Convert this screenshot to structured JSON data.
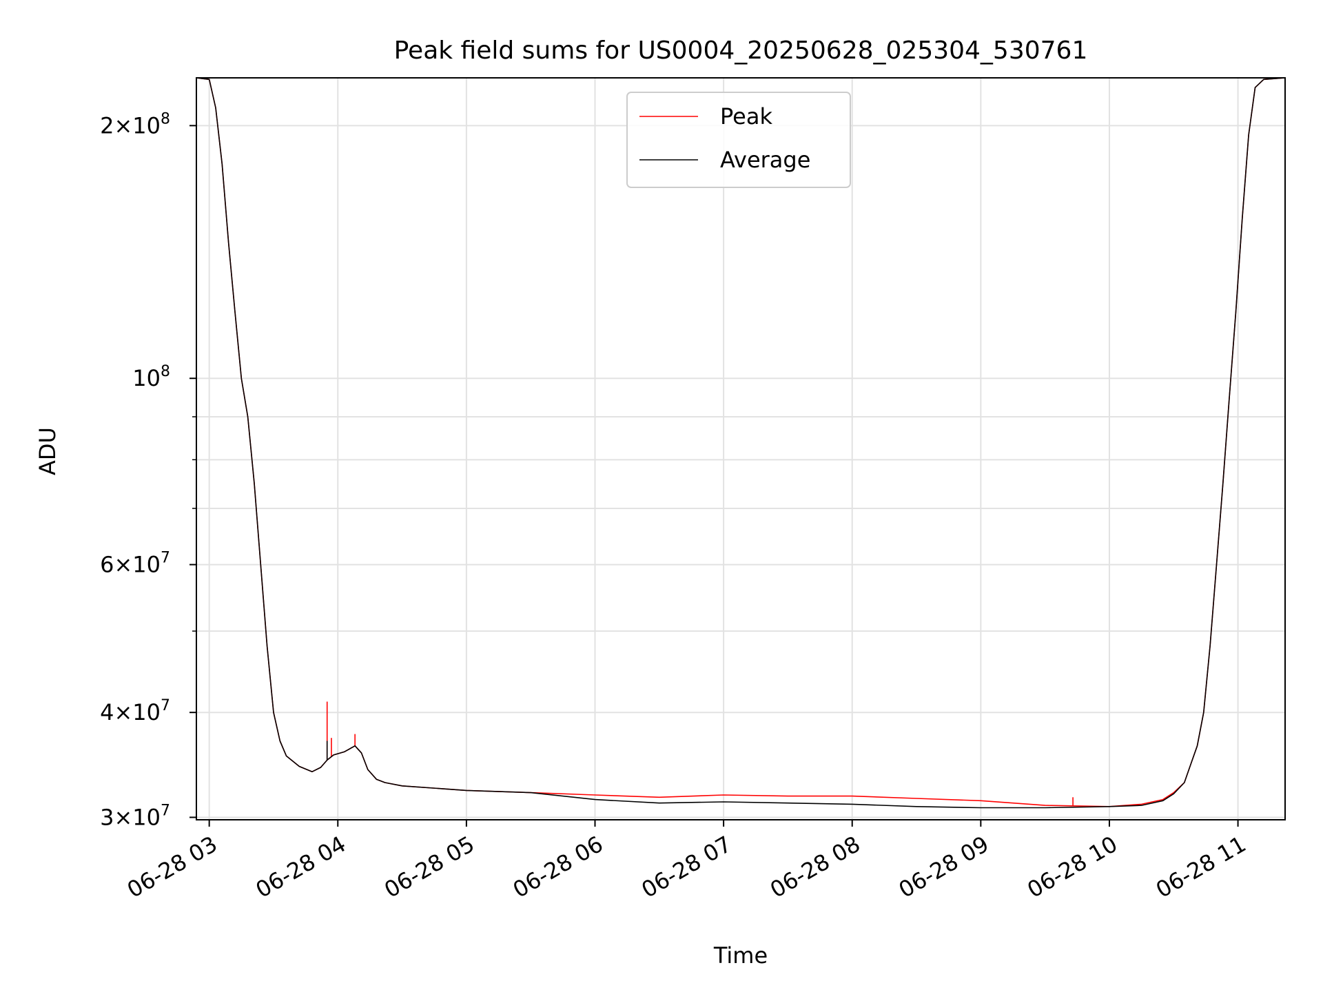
{
  "chart_data": {
    "type": "line",
    "title": "Peak field sums for US0004_20250628_025304_530761",
    "xlabel": "Time",
    "ylabel": "ADU",
    "y_scale": "log",
    "ylim": [
      29800000,
      228000000
    ],
    "xlim": [
      "06-28 02:54",
      "06-28 11:22"
    ],
    "x_ticks": [
      {
        "label": "06-28 03",
        "value": "06-28 03:00"
      },
      {
        "label": "06-28 04",
        "value": "06-28 04:00"
      },
      {
        "label": "06-28 05",
        "value": "06-28 05:00"
      },
      {
        "label": "06-28 06",
        "value": "06-28 06:00"
      },
      {
        "label": "06-28 07",
        "value": "06-28 07:00"
      },
      {
        "label": "06-28 08",
        "value": "06-28 08:00"
      },
      {
        "label": "06-28 09",
        "value": "06-28 09:00"
      },
      {
        "label": "06-28 10",
        "value": "06-28 10:00"
      },
      {
        "label": "06-28 11",
        "value": "06-28 11:00"
      }
    ],
    "y_ticks": [
      {
        "value": 30000000,
        "mant": "3",
        "exp": "7"
      },
      {
        "value": 40000000,
        "mant": "4",
        "exp": "7"
      },
      {
        "value": 60000000,
        "mant": "6",
        "exp": "7"
      },
      {
        "value": 100000000,
        "mant": "",
        "exp": "8"
      },
      {
        "value": 200000000,
        "mant": "2",
        "exp": "8"
      }
    ],
    "y_minor_ticks": [
      50000000,
      70000000,
      80000000,
      90000000
    ],
    "grid": true,
    "legend_position": "top-center",
    "series": [
      {
        "name": "Peak",
        "color": "#ff0000",
        "x": [
          "06-28 02:54",
          "06-28 03:00",
          "06-28 03:03",
          "06-28 03:06",
          "06-28 03:09",
          "06-28 03:12",
          "06-28 03:15",
          "06-28 03:18",
          "06-28 03:21",
          "06-28 03:24",
          "06-28 03:27",
          "06-28 03:30",
          "06-28 03:33",
          "06-28 03:36",
          "06-28 03:42",
          "06-28 03:48",
          "06-28 03:52",
          "06-28 03:55",
          "06-28 03:58",
          "06-28 04:03",
          "06-28 04:08",
          "06-28 04:11",
          "06-28 04:14",
          "06-28 04:18",
          "06-28 04:22",
          "06-28 04:30",
          "06-28 05:00",
          "06-28 05:30",
          "06-28 06:00",
          "06-28 06:30",
          "06-28 07:00",
          "06-28 07:30",
          "06-28 08:00",
          "06-28 08:30",
          "06-28 09:00",
          "06-28 09:30",
          "06-28 10:00",
          "06-28 10:15",
          "06-28 10:25",
          "06-28 10:30",
          "06-28 10:35",
          "06-28 10:38",
          "06-28 10:41",
          "06-28 10:44",
          "06-28 10:47",
          "06-28 10:50",
          "06-28 10:53",
          "06-28 10:56",
          "06-28 10:59",
          "06-28 11:02",
          "06-28 11:05",
          "06-28 11:08",
          "06-28 11:12",
          "06-28 11:22"
        ],
        "values": [
          228000000,
          227000000,
          210000000,
          180000000,
          145000000,
          120000000,
          100000000,
          90000000,
          75000000,
          60000000,
          48000000,
          40000000,
          37000000,
          35500000,
          34500000,
          34000000,
          34400000,
          35100000,
          35600000,
          35900000,
          36500000,
          35800000,
          34200000,
          33300000,
          33000000,
          32700000,
          32300000,
          32100000,
          31900000,
          31700000,
          31900000,
          31800000,
          31800000,
          31600000,
          31400000,
          31000000,
          30900000,
          31100000,
          31500000,
          32100000,
          33000000,
          34700000,
          36500000,
          40000000,
          48000000,
          60000000,
          75000000,
          95000000,
          120000000,
          155000000,
          195000000,
          222000000,
          227000000,
          228000000
        ],
        "spikes": [
          {
            "x": "06-28 03:55",
            "value": 41200000
          },
          {
            "x": "06-28 03:57",
            "value": 37300000
          },
          {
            "x": "06-28 04:08",
            "value": 37700000
          },
          {
            "x": "06-28 09:43",
            "value": 31700000
          }
        ]
      },
      {
        "name": "Average",
        "color": "#000000",
        "x": [
          "06-28 02:54",
          "06-28 03:00",
          "06-28 03:03",
          "06-28 03:06",
          "06-28 03:09",
          "06-28 03:12",
          "06-28 03:15",
          "06-28 03:18",
          "06-28 03:21",
          "06-28 03:24",
          "06-28 03:27",
          "06-28 03:30",
          "06-28 03:33",
          "06-28 03:36",
          "06-28 03:42",
          "06-28 03:48",
          "06-28 03:52",
          "06-28 03:55",
          "06-28 03:58",
          "06-28 04:03",
          "06-28 04:08",
          "06-28 04:11",
          "06-28 04:14",
          "06-28 04:18",
          "06-28 04:22",
          "06-28 04:30",
          "06-28 05:00",
          "06-28 05:30",
          "06-28 06:00",
          "06-28 06:30",
          "06-28 07:00",
          "06-28 07:30",
          "06-28 08:00",
          "06-28 08:30",
          "06-28 09:00",
          "06-28 09:30",
          "06-28 10:00",
          "06-28 10:15",
          "06-28 10:25",
          "06-28 10:30",
          "06-28 10:35",
          "06-28 10:38",
          "06-28 10:41",
          "06-28 10:44",
          "06-28 10:47",
          "06-28 10:50",
          "06-28 10:53",
          "06-28 10:56",
          "06-28 10:59",
          "06-28 11:02",
          "06-28 11:05",
          "06-28 11:08",
          "06-28 11:12",
          "06-28 11:22"
        ],
        "values": [
          228000000,
          227000000,
          210000000,
          180000000,
          145000000,
          120000000,
          100000000,
          90000000,
          75000000,
          60000000,
          48000000,
          40000000,
          37000000,
          35500000,
          34500000,
          34000000,
          34400000,
          35100000,
          35600000,
          35900000,
          36500000,
          35800000,
          34200000,
          33300000,
          33000000,
          32700000,
          32300000,
          32100000,
          31500000,
          31200000,
          31300000,
          31200000,
          31100000,
          30900000,
          30800000,
          30800000,
          30900000,
          31000000,
          31400000,
          32000000,
          33000000,
          34700000,
          36500000,
          40000000,
          48000000,
          60000000,
          75000000,
          95000000,
          120000000,
          155000000,
          195000000,
          222000000,
          227000000,
          228000000
        ],
        "spikes": [
          {
            "x": "06-28 03:55",
            "value": 37000000
          }
        ]
      }
    ]
  }
}
